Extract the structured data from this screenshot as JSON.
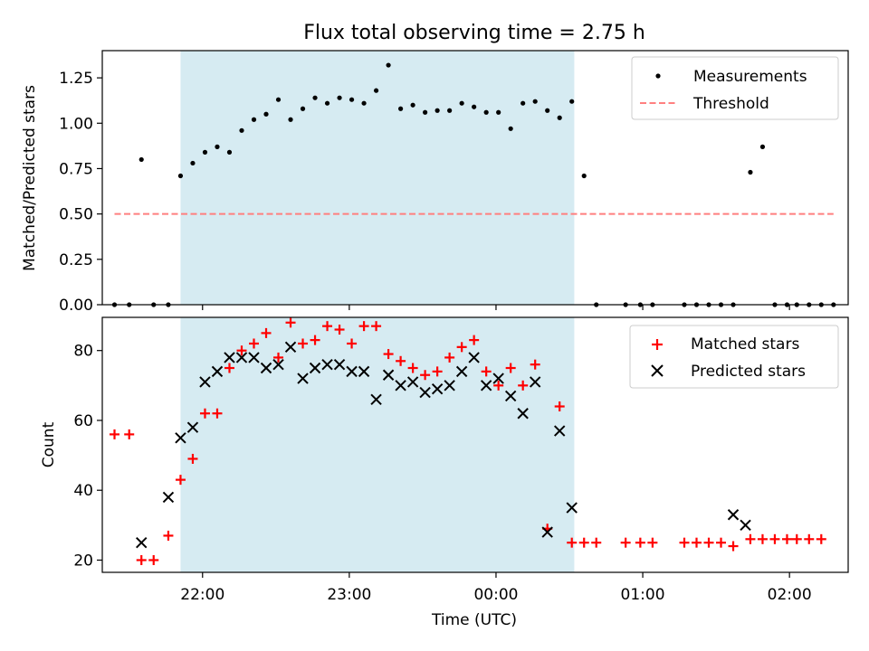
{
  "title": "Flux total observing time = 2.75 h",
  "colors": {
    "shade": "#add8e6",
    "measurement": "#000000",
    "threshold": "#ff7f7f",
    "matched": "#ff0000",
    "predicted": "#000000"
  },
  "chart_data": [
    {
      "type": "scatter",
      "ylabel": "Matched/Predicted stars",
      "ylim": [
        0,
        1.4
      ],
      "yticks": [
        0.0,
        0.25,
        0.5,
        0.75,
        1.0,
        1.25
      ],
      "ytick_labels": [
        "0.00",
        "0.25",
        "0.50",
        "0.75",
        "1.00",
        "1.25"
      ],
      "grid": false,
      "legend_position": "top-right",
      "shaded_interval": {
        "x_start": "21:51",
        "x_end": "00:32"
      },
      "series": [
        {
          "name": "Measurements",
          "marker": "dot",
          "points": [
            [
              "21:24",
              0
            ],
            [
              "21:30",
              0
            ],
            [
              "21:35",
              0.8
            ],
            [
              "21:40",
              0
            ],
            [
              "21:46",
              0
            ],
            [
              "21:51",
              0.71
            ],
            [
              "21:56",
              0.78
            ],
            [
              "22:01",
              0.84
            ],
            [
              "22:06",
              0.87
            ],
            [
              "22:11",
              0.84
            ],
            [
              "22:16",
              0.96
            ],
            [
              "22:21",
              1.02
            ],
            [
              "22:26",
              1.05
            ],
            [
              "22:31",
              1.13
            ],
            [
              "22:36",
              1.02
            ],
            [
              "22:41",
              1.08
            ],
            [
              "22:46",
              1.14
            ],
            [
              "22:51",
              1.11
            ],
            [
              "22:56",
              1.14
            ],
            [
              "23:01",
              1.13
            ],
            [
              "23:06",
              1.11
            ],
            [
              "23:11",
              1.18
            ],
            [
              "23:16",
              1.32
            ],
            [
              "23:21",
              1.08
            ],
            [
              "23:26",
              1.1
            ],
            [
              "23:31",
              1.06
            ],
            [
              "23:36",
              1.07
            ],
            [
              "23:41",
              1.07
            ],
            [
              "23:46",
              1.11
            ],
            [
              "23:51",
              1.09
            ],
            [
              "23:56",
              1.06
            ],
            [
              "00:01",
              1.06
            ],
            [
              "00:06",
              0.97
            ],
            [
              "00:11",
              1.11
            ],
            [
              "00:16",
              1.12
            ],
            [
              "00:21",
              1.07
            ],
            [
              "00:26",
              1.03
            ],
            [
              "00:31",
              1.12
            ],
            [
              "00:36",
              0.71
            ],
            [
              "00:41",
              0
            ],
            [
              "00:53",
              0
            ],
            [
              "00:59",
              0
            ],
            [
              "01:04",
              0
            ],
            [
              "01:17",
              0
            ],
            [
              "01:22",
              0
            ],
            [
              "01:27",
              0
            ],
            [
              "01:32",
              0
            ],
            [
              "01:37",
              0
            ],
            [
              "01:44",
              0.73
            ],
            [
              "01:49",
              0.87
            ],
            [
              "01:54",
              0
            ],
            [
              "01:59",
              0
            ],
            [
              "02:03",
              0
            ],
            [
              "02:08",
              0
            ],
            [
              "02:13",
              0
            ],
            [
              "02:18",
              0
            ]
          ]
        },
        {
          "name": "Threshold",
          "style": "dashed",
          "points": [
            [
              "21:24",
              0.5
            ],
            [
              "02:18",
              0.5
            ]
          ]
        }
      ]
    },
    {
      "type": "scatter",
      "xlabel": "Time (UTC)",
      "ylabel": "Count",
      "ylim": [
        16.5,
        89.5
      ],
      "yticks": [
        20,
        40,
        60,
        80
      ],
      "ytick_labels": [
        "20",
        "40",
        "60",
        "80"
      ],
      "x_range": [
        "21:19",
        "02:24"
      ],
      "xticks": [
        "22:00",
        "23:00",
        "00:00",
        "01:00",
        "02:00"
      ],
      "xtick_labels": [
        "22:00",
        "23:00",
        "00:00",
        "01:00",
        "02:00"
      ],
      "grid": false,
      "legend_position": "top-right",
      "shaded_interval": {
        "x_start": "21:51",
        "x_end": "00:32"
      },
      "series": [
        {
          "name": "Matched stars",
          "marker": "plus",
          "points": [
            [
              "21:24",
              56
            ],
            [
              "21:30",
              56
            ],
            [
              "21:35",
              20
            ],
            [
              "21:40",
              20
            ],
            [
              "21:46",
              27
            ],
            [
              "21:51",
              43
            ],
            [
              "21:56",
              49
            ],
            [
              "22:01",
              62
            ],
            [
              "22:06",
              62
            ],
            [
              "22:11",
              75
            ],
            [
              "22:16",
              80
            ],
            [
              "22:21",
              82
            ],
            [
              "22:26",
              85
            ],
            [
              "22:31",
              78
            ],
            [
              "22:36",
              88
            ],
            [
              "22:41",
              82
            ],
            [
              "22:46",
              83
            ],
            [
              "22:51",
              87
            ],
            [
              "22:56",
              86
            ],
            [
              "23:01",
              82
            ],
            [
              "23:06",
              87
            ],
            [
              "23:11",
              87
            ],
            [
              "23:16",
              79
            ],
            [
              "23:21",
              77
            ],
            [
              "23:26",
              75
            ],
            [
              "23:31",
              73
            ],
            [
              "23:36",
              74
            ],
            [
              "23:41",
              78
            ],
            [
              "23:46",
              81
            ],
            [
              "23:51",
              83
            ],
            [
              "23:56",
              74
            ],
            [
              "00:01",
              70
            ],
            [
              "00:06",
              75
            ],
            [
              "00:11",
              70
            ],
            [
              "00:16",
              76
            ],
            [
              "00:21",
              29
            ],
            [
              "00:26",
              64
            ],
            [
              "00:31",
              25
            ],
            [
              "00:36",
              25
            ],
            [
              "00:41",
              25
            ],
            [
              "00:53",
              25
            ],
            [
              "00:59",
              25
            ],
            [
              "01:04",
              25
            ],
            [
              "01:17",
              25
            ],
            [
              "01:22",
              25
            ],
            [
              "01:27",
              25
            ],
            [
              "01:32",
              25
            ],
            [
              "01:37",
              24
            ],
            [
              "01:44",
              26
            ],
            [
              "01:49",
              26
            ],
            [
              "01:54",
              26
            ],
            [
              "01:59",
              26
            ],
            [
              "02:03",
              26
            ],
            [
              "02:08",
              26
            ],
            [
              "02:13",
              26
            ]
          ]
        },
        {
          "name": "Predicted stars",
          "marker": "x",
          "points": [
            [
              "21:35",
              25
            ],
            [
              "21:46",
              38
            ],
            [
              "21:51",
              55
            ],
            [
              "21:56",
              58
            ],
            [
              "22:01",
              71
            ],
            [
              "22:06",
              74
            ],
            [
              "22:11",
              78
            ],
            [
              "22:16",
              78
            ],
            [
              "22:21",
              78
            ],
            [
              "22:26",
              75
            ],
            [
              "22:31",
              76
            ],
            [
              "22:36",
              81
            ],
            [
              "22:41",
              72
            ],
            [
              "22:46",
              75
            ],
            [
              "22:51",
              76
            ],
            [
              "22:56",
              76
            ],
            [
              "23:01",
              74
            ],
            [
              "23:06",
              74
            ],
            [
              "23:11",
              66
            ],
            [
              "23:16",
              73
            ],
            [
              "23:21",
              70
            ],
            [
              "23:26",
              71
            ],
            [
              "23:31",
              68
            ],
            [
              "23:36",
              69
            ],
            [
              "23:41",
              70
            ],
            [
              "23:46",
              74
            ],
            [
              "23:51",
              78
            ],
            [
              "23:56",
              70
            ],
            [
              "00:01",
              72
            ],
            [
              "00:06",
              67
            ],
            [
              "00:11",
              62
            ],
            [
              "00:16",
              71
            ],
            [
              "00:21",
              28
            ],
            [
              "00:26",
              57
            ],
            [
              "00:31",
              35
            ],
            [
              "01:37",
              33
            ],
            [
              "01:42",
              30
            ]
          ]
        }
      ]
    }
  ]
}
